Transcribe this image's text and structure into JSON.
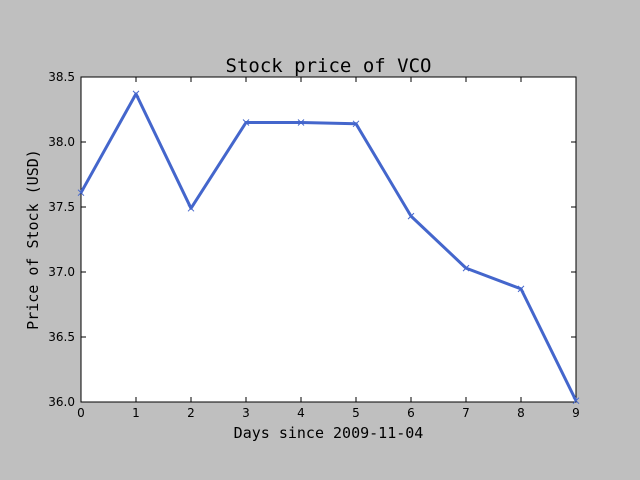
{
  "chart_data": {
    "type": "line",
    "title": "Stock price of VCO",
    "xlabel": "Days since 2009-11-04",
    "ylabel": "Price of Stock (USD)",
    "x": [
      0,
      1,
      2,
      3,
      4,
      5,
      6,
      7,
      8,
      9
    ],
    "series": [
      {
        "values": [
          37.61,
          38.37,
          37.49,
          38.15,
          38.15,
          38.14,
          37.43,
          37.03,
          36.87,
          36.01
        ]
      }
    ],
    "xlim": [
      0,
      9
    ],
    "ylim": [
      36.0,
      38.5
    ],
    "xticks": [
      "0",
      "1",
      "2",
      "3",
      "4",
      "5",
      "6",
      "7",
      "8",
      "9"
    ],
    "yticks": [
      "36.0",
      "36.5",
      "37.0",
      "37.5",
      "38.0",
      "38.5"
    ],
    "grid": false,
    "line_color": "#4466cc",
    "marker": "x"
  }
}
